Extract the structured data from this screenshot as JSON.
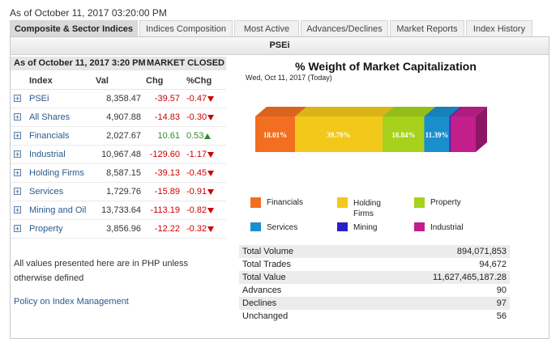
{
  "top_date": "As of October 11, 2017 03:20:00 PM",
  "tabs": [
    "Composite & Sector Indices",
    "Indices Composition",
    "Most Active",
    "Advances/Declines",
    "Market Reports",
    "Index History"
  ],
  "panel_title": "PSEi",
  "status": {
    "asof": "As of October 11, 2017 3:20 PM",
    "market": "MARKET CLOSED"
  },
  "table": {
    "headers": [
      "Index",
      "Val",
      "Chg",
      "%Chg"
    ],
    "rows": [
      {
        "name": "PSEi",
        "val": "8,358.47",
        "chg": "-39.57",
        "pct": "-0.47",
        "dir": "down"
      },
      {
        "name": "All Shares",
        "val": "4,907.88",
        "chg": "-14.83",
        "pct": "-0.30",
        "dir": "down"
      },
      {
        "name": "Financials",
        "val": "2,027.67",
        "chg": "10.61",
        "pct": "0.53",
        "dir": "up"
      },
      {
        "name": "Industrial",
        "val": "10,967.48",
        "chg": "-129.60",
        "pct": "-1.17",
        "dir": "down"
      },
      {
        "name": "Holding Firms",
        "val": "8,587.15",
        "chg": "-39.13",
        "pct": "-0.45",
        "dir": "down"
      },
      {
        "name": "Services",
        "val": "1,729.76",
        "chg": "-15.89",
        "pct": "-0.91",
        "dir": "down"
      },
      {
        "name": "Mining and Oil",
        "val": "13,733.64",
        "chg": "-113.19",
        "pct": "-0.82",
        "dir": "down"
      },
      {
        "name": "Property",
        "val": "3,856.96",
        "chg": "-12.22",
        "pct": "-0.32",
        "dir": "down"
      }
    ]
  },
  "note": "All values presented here are in PHP unless otherwise defined",
  "policy_link": "Policy on Index Management",
  "chart": {
    "title": "% Weight of Market Capitalization",
    "subtitle": "Wed, Oct 11, 2017 (Today)"
  },
  "chart_data": {
    "type": "bar",
    "title": "% Weight of Market Capitalization",
    "subtitle": "Wed, Oct 11, 2017 (Today)",
    "series": [
      {
        "name": "Financials",
        "value": 18.01,
        "label": "18.01%",
        "color": "#f26f21"
      },
      {
        "name": "Holding Firms",
        "value": 39.79,
        "label": "39.79%",
        "color": "#f2c81a"
      },
      {
        "name": "Property",
        "value": 18.84,
        "label": "18.84%",
        "color": "#a6d21d"
      },
      {
        "name": "Services",
        "value": 11.39,
        "label": "11.39%",
        "color": "#1a8fce"
      },
      {
        "name": "Mining and Oil",
        "value": 0.5,
        "label": "",
        "color": "#2a1fc9"
      },
      {
        "name": "Industrial",
        "value": 11.47,
        "label": "",
        "color": "#c21e8c"
      }
    ]
  },
  "legend": [
    {
      "label": "Financials",
      "color": "#f26f21"
    },
    {
      "label": "Holding Firms",
      "color": "#f2c81a"
    },
    {
      "label": "Property",
      "color": "#a6d21d"
    },
    {
      "label": "Services",
      "color": "#1a8fce"
    },
    {
      "label": "Mining and Oil",
      "color": "#2a1fc9"
    },
    {
      "label": "Industrial",
      "color": "#c21e8c"
    }
  ],
  "stats": [
    {
      "label": "Total Volume",
      "value": "894,071,853"
    },
    {
      "label": "Total Trades",
      "value": "94,672"
    },
    {
      "label": "Total Value",
      "value": "11,627,465,187.28"
    },
    {
      "label": "Advances",
      "value": "90"
    },
    {
      "label": "Declines",
      "value": "97"
    },
    {
      "label": "Unchanged",
      "value": "56"
    }
  ]
}
